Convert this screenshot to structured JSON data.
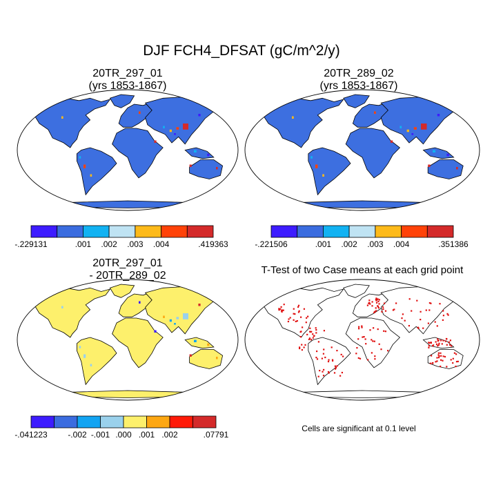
{
  "figure": {
    "title": "DJF FCH4_DFSAT (gC/m^2/y)"
  },
  "panels": [
    {
      "id": "p1",
      "title_lines": [
        "20TR_297_01",
        "(yrs 1853-1867)"
      ],
      "fill": "#3d6fe0",
      "colorbar": {
        "colors": [
          "#3d1cff",
          "#3b6cdf",
          "#12b2f2",
          "#bfe3f3",
          "#fdba1a",
          "#ff4208",
          "#d42a2a"
        ],
        "labels": [
          "-.229131",
          ".001",
          ".002",
          ".003",
          ".004",
          ".419363"
        ],
        "label_boundaries": [
          0,
          2,
          3,
          4,
          5,
          7
        ]
      },
      "hotspot_colors": [
        "#d42a2a",
        "#ff4208",
        "#fdba1a",
        "#12b2f2",
        "#3d1cff"
      ]
    },
    {
      "id": "p2",
      "title_lines": [
        "20TR_289_02",
        "(yrs 1853-1867)"
      ],
      "fill": "#3d6fe0",
      "colorbar": {
        "colors": [
          "#3d1cff",
          "#3b6cdf",
          "#12b2f2",
          "#bfe3f3",
          "#fdba1a",
          "#ff4208",
          "#d42a2a"
        ],
        "labels": [
          "-.221506",
          ".001",
          ".002",
          ".003",
          ".004",
          ".351386"
        ],
        "label_boundaries": [
          0,
          2,
          3,
          4,
          5,
          7
        ]
      },
      "hotspot_colors": [
        "#d42a2a",
        "#ff4208",
        "#fdba1a",
        "#12b2f2",
        "#3d1cff"
      ]
    },
    {
      "id": "p3",
      "title_lines": [
        "20TR_297_01",
        "- 20TR_289_02"
      ],
      "fill": "#fdf06c",
      "colorbar": {
        "colors": [
          "#3d1cff",
          "#3b6cdf",
          "#12a4f2",
          "#9ad1ec",
          "#fdf06c",
          "#fda712",
          "#ff1a08",
          "#d42a2a"
        ],
        "labels": [
          "-.041223",
          "-.002",
          "-.001",
          ".000",
          ".001",
          ".002",
          ".07791"
        ],
        "label_boundaries": [
          0,
          2,
          3,
          4,
          5,
          6,
          8
        ]
      },
      "hotspot_colors": [
        "#9ad1ec",
        "#9ad1ec",
        "#12a4f2",
        "#fda712",
        "#d42a2a",
        "#3d1cff"
      ]
    },
    {
      "id": "p4",
      "title_lines": [
        "T-Test of two Case means at each grid point"
      ],
      "fill": "#ffffff",
      "note": "Cells are significant at 0.1 level",
      "hotspot_colors": [
        "#e01010"
      ]
    }
  ]
}
